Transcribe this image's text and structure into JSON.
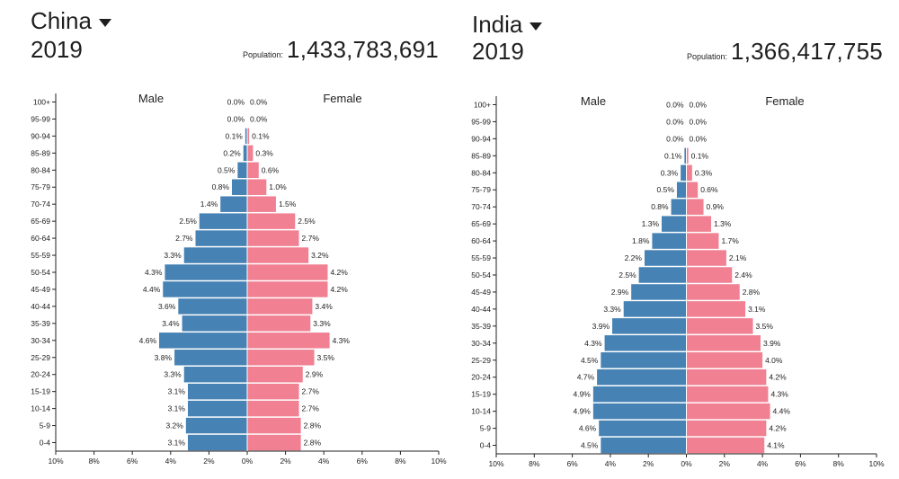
{
  "colors": {
    "male": "#4682b4",
    "female": "#f08092",
    "axis": "#222222"
  },
  "labels": {
    "population": "Population:",
    "male": "Male",
    "female": "Female"
  },
  "panels": [
    {
      "country": "China",
      "year": "2019",
      "population": "1,433,783,691"
    },
    {
      "country": "India",
      "year": "2019",
      "population": "1,366,417,755"
    }
  ],
  "chart_data": [
    {
      "type": "bar",
      "orientation": "horizontal",
      "subtype": "population-pyramid",
      "categories": [
        "100+",
        "95-99",
        "90-94",
        "85-89",
        "80-84",
        "75-79",
        "70-74",
        "65-69",
        "60-64",
        "55-59",
        "50-54",
        "45-49",
        "40-44",
        "35-39",
        "30-34",
        "25-29",
        "20-24",
        "15-19",
        "10-14",
        "5-9",
        "0-4"
      ],
      "series": [
        {
          "name": "Male",
          "values": [
            0.0,
            0.0,
            0.1,
            0.2,
            0.5,
            0.8,
            1.4,
            2.5,
            2.7,
            3.3,
            4.3,
            4.4,
            3.6,
            3.4,
            4.6,
            3.8,
            3.3,
            3.1,
            3.1,
            3.2,
            3.1
          ]
        },
        {
          "name": "Female",
          "values": [
            0.0,
            0.0,
            0.1,
            0.3,
            0.6,
            1.0,
            1.5,
            2.5,
            2.7,
            3.2,
            4.2,
            4.2,
            3.4,
            3.3,
            4.3,
            3.5,
            2.9,
            2.7,
            2.7,
            2.8,
            2.8
          ]
        }
      ],
      "xticks": [
        "10%",
        "8%",
        "6%",
        "4%",
        "2%",
        "0%",
        "2%",
        "4%",
        "6%",
        "8%",
        "10%"
      ],
      "xlim": [
        -10,
        10
      ]
    },
    {
      "type": "bar",
      "orientation": "horizontal",
      "subtype": "population-pyramid",
      "categories": [
        "100+",
        "95-99",
        "90-94",
        "85-89",
        "80-84",
        "75-79",
        "70-74",
        "65-69",
        "60-64",
        "55-59",
        "50-54",
        "45-49",
        "40-44",
        "35-39",
        "30-34",
        "25-29",
        "20-24",
        "15-19",
        "10-14",
        "5-9",
        "0-4"
      ],
      "series": [
        {
          "name": "Male",
          "values": [
            0.0,
            0.0,
            0.0,
            0.1,
            0.3,
            0.5,
            0.8,
            1.3,
            1.8,
            2.2,
            2.5,
            2.9,
            3.3,
            3.9,
            4.3,
            4.5,
            4.7,
            4.9,
            4.9,
            4.6,
            4.5
          ]
        },
        {
          "name": "Female",
          "values": [
            0.0,
            0.0,
            0.0,
            0.1,
            0.3,
            0.6,
            0.9,
            1.3,
            1.7,
            2.1,
            2.4,
            2.8,
            3.1,
            3.5,
            3.9,
            4.0,
            4.2,
            4.3,
            4.4,
            4.2,
            4.1
          ]
        }
      ],
      "xticks": [
        "10%",
        "8%",
        "6%",
        "4%",
        "2%",
        "0%",
        "2%",
        "4%",
        "6%",
        "8%",
        "10%"
      ],
      "xlim": [
        -10,
        10
      ]
    }
  ]
}
